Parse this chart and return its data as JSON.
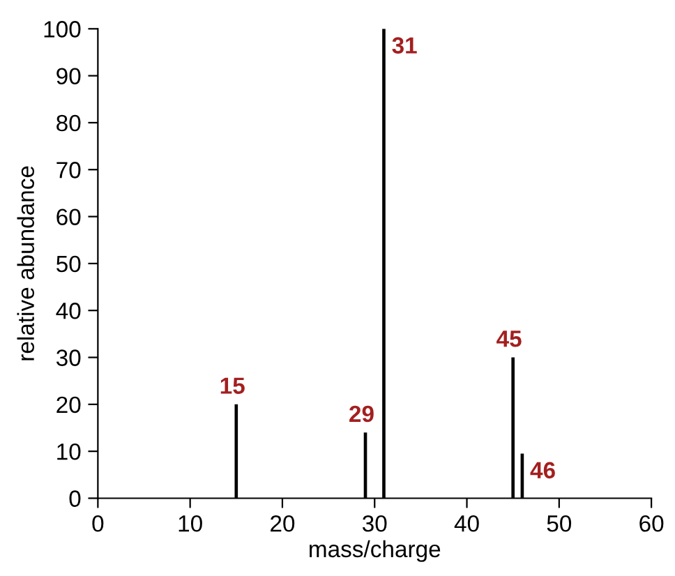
{
  "chart_data": {
    "type": "bar",
    "x": [
      15,
      29,
      31,
      45,
      46
    ],
    "values": [
      20,
      14,
      100,
      30,
      9.5
    ],
    "color": "#000000",
    "xlabel": "mass/charge",
    "ylabel": "relative abundance",
    "xlim": [
      0,
      60
    ],
    "ylim": [
      0,
      100
    ],
    "xticks": [
      0,
      10,
      20,
      30,
      40,
      50,
      60
    ],
    "yticks": [
      0,
      10,
      20,
      30,
      40,
      50,
      60,
      70,
      80,
      90,
      100
    ],
    "grid": false,
    "annotations": [
      {
        "text": "15",
        "x": 15,
        "y": 20
      },
      {
        "text": "29",
        "x": 29,
        "y": 14
      },
      {
        "text": "31",
        "x": 31,
        "y": 100
      },
      {
        "text": "45",
        "x": 45,
        "y": 30
      },
      {
        "text": "46",
        "x": 46,
        "y": 9.5
      }
    ]
  }
}
